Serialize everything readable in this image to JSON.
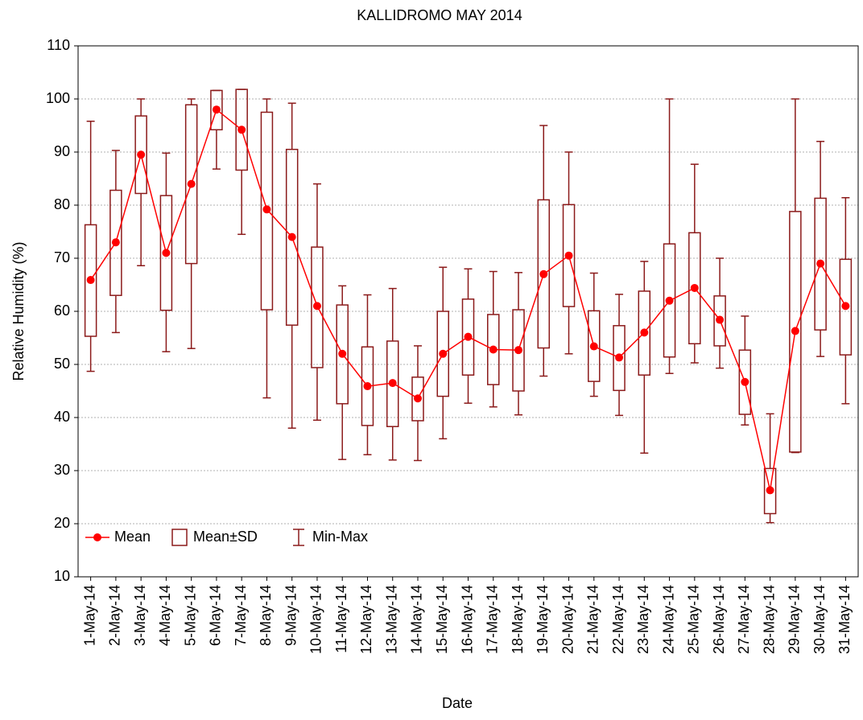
{
  "chart_data": {
    "type": "box",
    "title": "KALLIDROMO MAY 2014",
    "x_label": "Date",
    "y_label": "Relative Humidity (%)",
    "categories": [
      "1-May-14",
      "2-May-14",
      "3-May-14",
      "4-May-14",
      "5-May-14",
      "6-May-14",
      "7-May-14",
      "8-May-14",
      "9-May-14",
      "10-May-14",
      "11-May-14",
      "12-May-14",
      "13-May-14",
      "14-May-14",
      "15-May-14",
      "16-May-14",
      "17-May-14",
      "18-May-14",
      "19-May-14",
      "20-May-14",
      "21-May-14",
      "22-May-14",
      "23-May-14",
      "24-May-14",
      "25-May-14",
      "26-May-14",
      "27-May-14",
      "28-May-14",
      "29-May-14",
      "30-May-14",
      "31-May-14"
    ],
    "series": [
      {
        "name": "Mean",
        "color": "#ff0000",
        "values": [
          65.9,
          73,
          89.5,
          71,
          84,
          98,
          94.2,
          79.2,
          74,
          61,
          52,
          45.9,
          46.5,
          43.6,
          52,
          55.2,
          52.8,
          52.7,
          67,
          70.5,
          53.4,
          51.3,
          56,
          62,
          64.4,
          58.4,
          46.7,
          26.3,
          56.3,
          69,
          61
        ]
      },
      {
        "name": "Mean±SD",
        "color": "#8b1a1a",
        "lower": [
          55.3,
          63,
          82.2,
          60.2,
          69,
          94.2,
          86.6,
          60.3,
          57.4,
          49.4,
          42.6,
          38.5,
          38.3,
          39.4,
          44,
          48,
          46.2,
          45,
          53.1,
          60.9,
          46.8,
          45.1,
          48,
          51.4,
          53.9,
          53.5,
          40.6,
          21.9,
          33.5,
          56.5,
          51.8
        ],
        "upper": [
          76.3,
          82.8,
          96.8,
          81.8,
          98.9,
          101.6,
          101.8,
          97.5,
          90.5,
          72.1,
          61.2,
          53.3,
          54.4,
          47.6,
          60,
          62.3,
          59.4,
          60.3,
          81,
          80.1,
          60.1,
          57.3,
          63.8,
          72.7,
          74.8,
          62.9,
          52.7,
          30.4,
          78.8,
          81.3,
          69.8
        ]
      },
      {
        "name": "Min-Max",
        "color": "#8b1a1a",
        "lower": [
          48.7,
          56,
          68.6,
          52.4,
          53,
          86.8,
          74.5,
          43.7,
          38,
          39.5,
          32.1,
          33,
          32,
          31.9,
          36,
          42.7,
          42,
          40.5,
          47.8,
          52,
          44,
          40.4,
          33.3,
          48.3,
          50.3,
          49.3,
          38.6,
          20.2,
          33.4,
          51.5,
          42.6
        ],
        "upper": [
          95.8,
          90.3,
          100,
          89.8,
          100,
          101.6,
          101.8,
          100,
          99.2,
          84,
          64.8,
          63.1,
          64.3,
          53.5,
          68.3,
          68,
          67.5,
          67.3,
          95,
          90,
          67.2,
          63.2,
          69.4,
          100,
          87.7,
          70,
          59.1,
          40.7,
          100,
          92,
          81.4
        ]
      }
    ],
    "ylim": [
      10,
      110
    ],
    "yticks": [
      10,
      20,
      30,
      40,
      50,
      60,
      70,
      80,
      90,
      100,
      110
    ],
    "grid": true,
    "legend": "lower left"
  }
}
